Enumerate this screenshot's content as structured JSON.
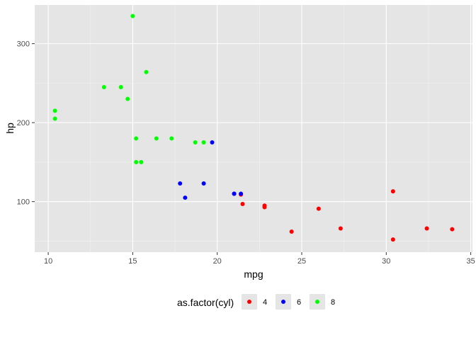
{
  "chart_data": {
    "type": "scatter",
    "xlabel": "mpg",
    "ylabel": "hp",
    "xlim": [
      9.2,
      35.1
    ],
    "ylim": [
      36,
      349
    ],
    "x_ticks": [
      10,
      15,
      20,
      25,
      30,
      35
    ],
    "y_ticks": [
      100,
      200,
      300
    ],
    "x_tick_labels": [
      "10",
      "15",
      "20",
      "25",
      "30",
      "35"
    ],
    "y_tick_labels": [
      "100",
      "200",
      "300"
    ],
    "grid": true,
    "panel_background": "#e5e5e5",
    "legend": {
      "title": "as.factor(cyl)",
      "position": "bottom"
    },
    "series": [
      {
        "name": "4",
        "color": "#ff0000",
        "points": [
          {
            "x": 22.8,
            "y": 93
          },
          {
            "x": 24.4,
            "y": 62
          },
          {
            "x": 22.8,
            "y": 95
          },
          {
            "x": 32.4,
            "y": 66
          },
          {
            "x": 30.4,
            "y": 52
          },
          {
            "x": 33.9,
            "y": 65
          },
          {
            "x": 21.5,
            "y": 97
          },
          {
            "x": 27.3,
            "y": 66
          },
          {
            "x": 26.0,
            "y": 91
          },
          {
            "x": 30.4,
            "y": 113
          },
          {
            "x": 21.4,
            "y": 109
          }
        ]
      },
      {
        "name": "6",
        "color": "#0000ff",
        "points": [
          {
            "x": 21.0,
            "y": 110
          },
          {
            "x": 21.0,
            "y": 110
          },
          {
            "x": 21.4,
            "y": 110
          },
          {
            "x": 18.1,
            "y": 105
          },
          {
            "x": 19.2,
            "y": 123
          },
          {
            "x": 17.8,
            "y": 123
          },
          {
            "x": 19.7,
            "y": 175
          }
        ]
      },
      {
        "name": "8",
        "color": "#00ff00",
        "points": [
          {
            "x": 18.7,
            "y": 175
          },
          {
            "x": 14.3,
            "y": 245
          },
          {
            "x": 16.4,
            "y": 180
          },
          {
            "x": 17.3,
            "y": 180
          },
          {
            "x": 15.2,
            "y": 180
          },
          {
            "x": 10.4,
            "y": 205
          },
          {
            "x": 10.4,
            "y": 215
          },
          {
            "x": 14.7,
            "y": 230
          },
          {
            "x": 15.5,
            "y": 150
          },
          {
            "x": 15.2,
            "y": 150
          },
          {
            "x": 13.3,
            "y": 245
          },
          {
            "x": 19.2,
            "y": 175
          },
          {
            "x": 15.8,
            "y": 264
          },
          {
            "x": 15.0,
            "y": 335
          }
        ]
      }
    ]
  }
}
